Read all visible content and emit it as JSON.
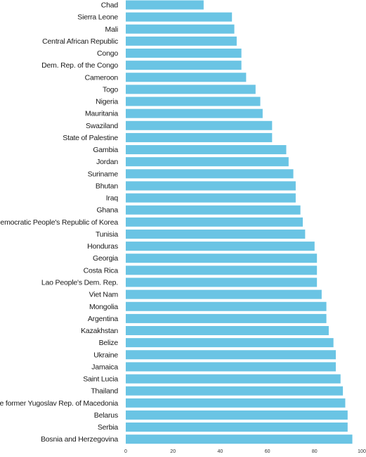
{
  "chart_data": {
    "type": "bar",
    "orientation": "horizontal",
    "title": "",
    "xlabel": "",
    "ylabel": "",
    "xlim": [
      0,
      100
    ],
    "xticks": [
      0,
      20,
      40,
      60,
      80,
      100
    ],
    "grid": false,
    "bar_color": "#6ac4e4",
    "categories": [
      "Chad",
      "Sierra Leone",
      "Mali",
      "Central African Republic",
      "Congo",
      "Dem. Rep. of the Congo",
      "Cameroon",
      "Togo",
      "Nigeria",
      "Mauritania",
      "Swaziland",
      "State of Palestine",
      "Gambia",
      "Jordan",
      "Suriname",
      "Bhutan",
      "Iraq",
      "Ghana",
      "Democratic People's Republic of Korea",
      "Tunisia",
      "Honduras",
      "Georgia",
      "Costa Rica",
      "Lao People's Dem. Rep.",
      "Viet Nam",
      "Mongolia",
      "Argentina",
      "Kazakhstan",
      "Belize",
      "Ukraine",
      "Jamaica",
      "Saint Lucia",
      "Thailand",
      "The former Yugoslav Rep. of Macedonia",
      "Belarus",
      "Serbia",
      "Bosnia and Herzegovina"
    ],
    "values": [
      33,
      45,
      46,
      47,
      49,
      49,
      51,
      55,
      57,
      58,
      62,
      62,
      68,
      69,
      71,
      72,
      72,
      74,
      75,
      76,
      80,
      81,
      81,
      81,
      83,
      85,
      85,
      86,
      88,
      89,
      89,
      91,
      92,
      93,
      94,
      94,
      96
    ]
  }
}
